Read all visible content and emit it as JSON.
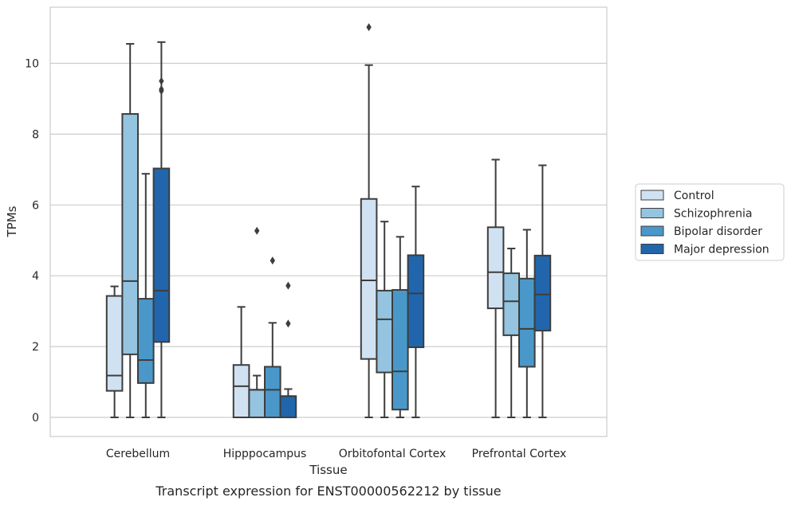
{
  "chart_data": {
    "type": "box",
    "title": "",
    "caption": "Transcript expression for ENST00000562212 by tissue",
    "xlabel": "Tissue",
    "ylabel": "TPMs",
    "ylim": [
      -0.5,
      11.6
    ],
    "yticks": [
      0,
      2,
      4,
      6,
      8,
      10
    ],
    "grid": "horizontal",
    "legend_position": "right",
    "categories": [
      "Cerebellum",
      "Hipppocampus",
      "Orbitofontal Cortex",
      "Prefrontal Cortex"
    ],
    "series": [
      {
        "name": "Control",
        "color": "#d0e1f2",
        "boxes": [
          {
            "min": 0,
            "q1": 0.75,
            "median": 1.18,
            "q3": 3.43,
            "max": 3.7,
            "outliers": []
          },
          {
            "min": 0,
            "q1": 0,
            "median": 0.88,
            "q3": 1.48,
            "max": 3.12,
            "outliers": []
          },
          {
            "min": 0,
            "q1": 1.65,
            "median": 3.87,
            "q3": 6.17,
            "max": 9.95,
            "outliers": [
              11.02
            ]
          },
          {
            "min": 0,
            "q1": 3.08,
            "median": 4.1,
            "q3": 5.37,
            "max": 7.28,
            "outliers": []
          }
        ]
      },
      {
        "name": "Schizophrenia",
        "color": "#94c4df",
        "boxes": [
          {
            "min": 0,
            "q1": 1.78,
            "median": 3.85,
            "q3": 8.57,
            "max": 10.55,
            "outliers": []
          },
          {
            "min": 0,
            "q1": 0,
            "median": 0.78,
            "q3": 0.78,
            "max": 1.18,
            "outliers": [
              5.27
            ]
          },
          {
            "min": 0,
            "q1": 1.27,
            "median": 2.77,
            "q3": 3.58,
            "max": 5.53,
            "outliers": []
          },
          {
            "min": 0,
            "q1": 2.32,
            "median": 3.28,
            "q3": 4.07,
            "max": 4.77,
            "outliers": []
          }
        ]
      },
      {
        "name": "Bipolar disorder",
        "color": "#4a98c9",
        "boxes": [
          {
            "min": 0,
            "q1": 0.97,
            "median": 1.62,
            "q3": 3.35,
            "max": 6.88,
            "outliers": []
          },
          {
            "min": 0,
            "q1": 0,
            "median": 0.78,
            "q3": 1.43,
            "max": 2.67,
            "outliers": [
              4.43
            ]
          },
          {
            "min": 0,
            "q1": 0.22,
            "median": 1.3,
            "q3": 3.6,
            "max": 5.1,
            "outliers": []
          },
          {
            "min": 0,
            "q1": 1.43,
            "median": 2.5,
            "q3": 3.92,
            "max": 5.3,
            "outliers": []
          }
        ]
      },
      {
        "name": "Major depression",
        "color": "#2166ac",
        "boxes": [
          {
            "min": 0,
            "q1": 2.13,
            "median": 3.58,
            "q3": 7.03,
            "max": 10.6,
            "outliers": [
              9.22,
              9.27,
              9.5
            ]
          },
          {
            "min": 0,
            "q1": 0,
            "median": 0.6,
            "q3": 0.6,
            "max": 0.8,
            "outliers": [
              2.65,
              3.72
            ]
          },
          {
            "min": 0,
            "q1": 1.98,
            "median": 3.5,
            "q3": 4.58,
            "max": 6.52,
            "outliers": []
          },
          {
            "min": 0,
            "q1": 2.45,
            "median": 3.47,
            "q3": 4.57,
            "max": 7.12,
            "outliers": []
          }
        ]
      }
    ]
  }
}
